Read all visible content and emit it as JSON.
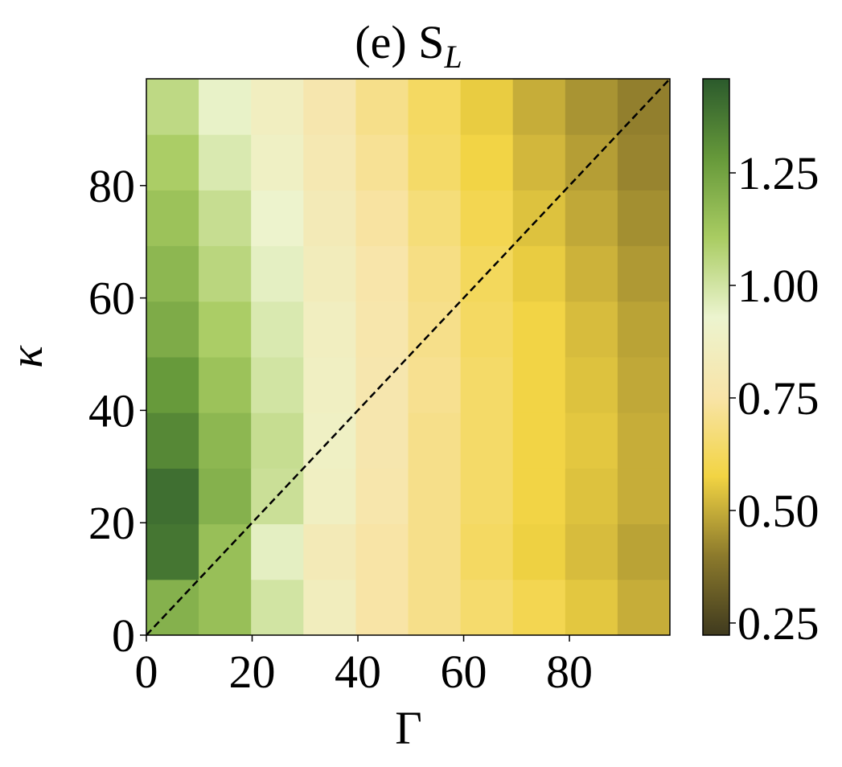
{
  "chart_data": {
    "type": "heatmap",
    "title": {
      "text": "(e) S",
      "subscript": "L"
    },
    "xlabel": "Γ",
    "ylabel": "κ",
    "xlim": [
      0,
      99
    ],
    "ylim": [
      0,
      99
    ],
    "xticks": [
      0,
      20,
      40,
      60,
      80
    ],
    "yticks": [
      0,
      20,
      40,
      60,
      80
    ],
    "z": [
      [
        1.2,
        1.15,
        1.0,
        0.85,
        0.75,
        0.7,
        0.65,
        0.6,
        0.55,
        0.5
      ],
      [
        1.38,
        1.15,
        0.95,
        0.82,
        0.75,
        0.7,
        0.63,
        0.57,
        0.53,
        0.48
      ],
      [
        1.4,
        1.2,
        1.02,
        0.87,
        0.77,
        0.7,
        0.64,
        0.58,
        0.54,
        0.5
      ],
      [
        1.33,
        1.18,
        1.03,
        0.88,
        0.78,
        0.7,
        0.64,
        0.58,
        0.55,
        0.5
      ],
      [
        1.28,
        1.14,
        1.0,
        0.87,
        0.78,
        0.71,
        0.64,
        0.58,
        0.54,
        0.49
      ],
      [
        1.22,
        1.1,
        0.98,
        0.86,
        0.77,
        0.7,
        0.63,
        0.58,
        0.53,
        0.48
      ],
      [
        1.18,
        1.06,
        0.95,
        0.84,
        0.76,
        0.69,
        0.62,
        0.56,
        0.51,
        0.46
      ],
      [
        1.14,
        1.03,
        0.92,
        0.82,
        0.74,
        0.67,
        0.6,
        0.54,
        0.49,
        0.44
      ],
      [
        1.1,
        0.98,
        0.88,
        0.8,
        0.72,
        0.64,
        0.58,
        0.52,
        0.47,
        0.42
      ],
      [
        1.05,
        0.94,
        0.86,
        0.78,
        0.7,
        0.63,
        0.56,
        0.5,
        0.45,
        0.41
      ]
    ],
    "zlim": [
      0.223,
      1.459
    ],
    "zticks": [
      0.25,
      {
        "value": 0.5,
        "label": "0.50"
      },
      0.75,
      {
        "value": 1.0,
        "label": "1.00"
      },
      1.25
    ],
    "colormap": [
      "#3f3a1e",
      "#8c7a2c",
      "#f2d443",
      "#f8e4a8",
      "#ecf4cf",
      "#a9cc62",
      "#66993a",
      "#2b5a2c"
    ],
    "reference_line": {
      "x": [
        0,
        99
      ],
      "y": [
        0,
        99
      ],
      "color": "#000000"
    }
  }
}
